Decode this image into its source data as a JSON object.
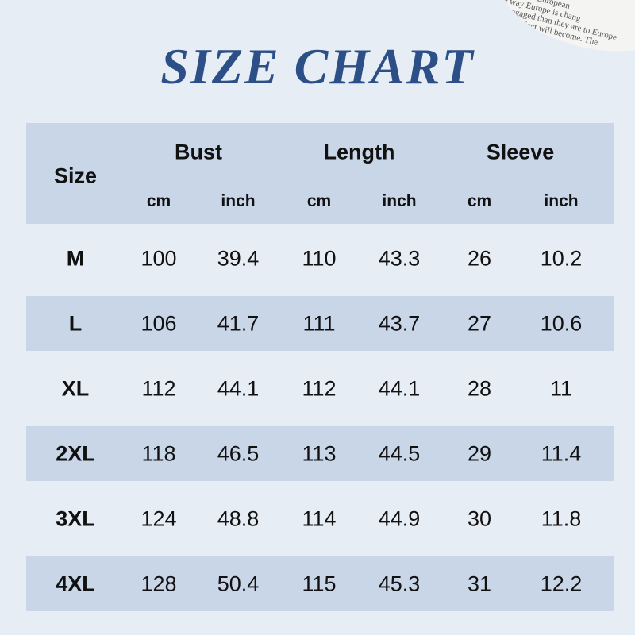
{
  "title": "SIZE CHART",
  "clipping": [
    "ceptions",
    "uality: if European",
    "e way Europe is chang",
    "isengaged than they are to Europe",
    "ean project will become. The"
  ],
  "table": {
    "size_header": "Size",
    "groups": [
      {
        "label": "Bust",
        "units": [
          "cm",
          "inch"
        ]
      },
      {
        "label": "Length",
        "units": [
          "cm",
          "inch"
        ]
      },
      {
        "label": "Sleeve",
        "units": [
          "cm",
          "inch"
        ]
      }
    ],
    "rows": [
      [
        "M",
        100,
        39.4,
        110,
        43.3,
        26,
        10.2
      ],
      [
        "L",
        106,
        41.7,
        111,
        43.7,
        27,
        10.6
      ],
      [
        "XL",
        112,
        44.1,
        112,
        44.1,
        28,
        11
      ],
      [
        "2XL",
        118,
        46.5,
        113,
        44.5,
        29,
        11.4
      ],
      [
        "3XL",
        124,
        48.8,
        114,
        44.9,
        30,
        11.8
      ],
      [
        "4XL",
        128,
        50.4,
        115,
        45.3,
        31,
        12.2
      ]
    ]
  }
}
